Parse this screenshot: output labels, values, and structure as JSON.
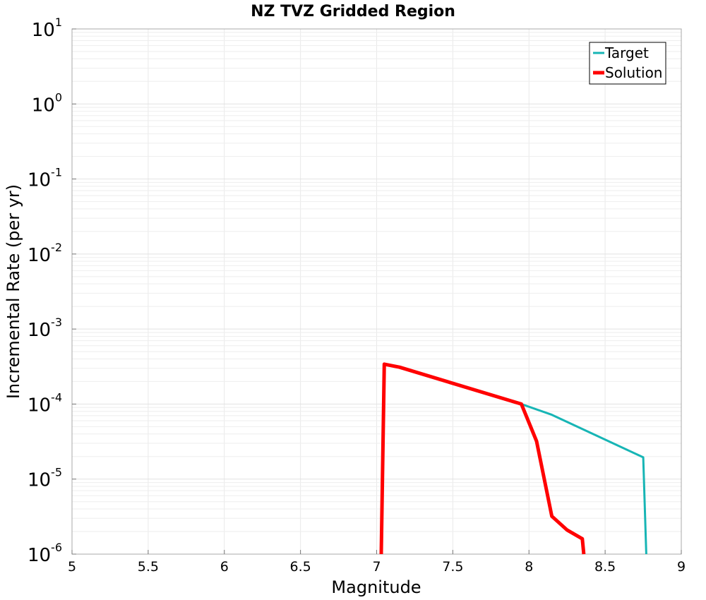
{
  "chart_data": {
    "type": "line",
    "title": "NZ TVZ Gridded Region",
    "xlabel": "Magnitude",
    "ylabel": "Incremental Rate (per yr)",
    "x_scale": "linear",
    "y_scale": "log",
    "xlim": [
      5,
      9
    ],
    "ylim": [
      1e-06,
      10
    ],
    "grid": true,
    "legend_position": "top-right",
    "x_ticks": [
      "5",
      "5.5",
      "6",
      "6.5",
      "7",
      "7.5",
      "8",
      "8.5",
      "9"
    ],
    "y_ticks": [
      {
        "base": "10",
        "exp": "-6"
      },
      {
        "base": "10",
        "exp": "-5"
      },
      {
        "base": "10",
        "exp": "-4"
      },
      {
        "base": "10",
        "exp": "-3"
      },
      {
        "base": "10",
        "exp": "-2"
      },
      {
        "base": "10",
        "exp": "-1"
      },
      {
        "base": "10",
        "exp": "0"
      },
      {
        "base": "10",
        "exp": "1"
      }
    ],
    "series": [
      {
        "name": "Target",
        "color": "#17b5b5",
        "x": [
          7.05,
          7.15,
          7.95,
          8.15,
          8.75,
          8.77
        ],
        "y": [
          0.00034,
          0.00031,
          0.0001,
          7.2e-05,
          1.95e-05,
          1e-06
        ]
      },
      {
        "name": "Solution",
        "color": "#ff0000",
        "x": [
          7.03,
          7.05,
          7.15,
          7.95,
          8.05,
          8.15,
          8.25,
          8.35,
          8.36
        ],
        "y": [
          1e-06,
          0.00034,
          0.00031,
          0.0001,
          3.2e-05,
          3.2e-06,
          2.1e-06,
          1.6e-06,
          1e-06
        ]
      }
    ]
  }
}
